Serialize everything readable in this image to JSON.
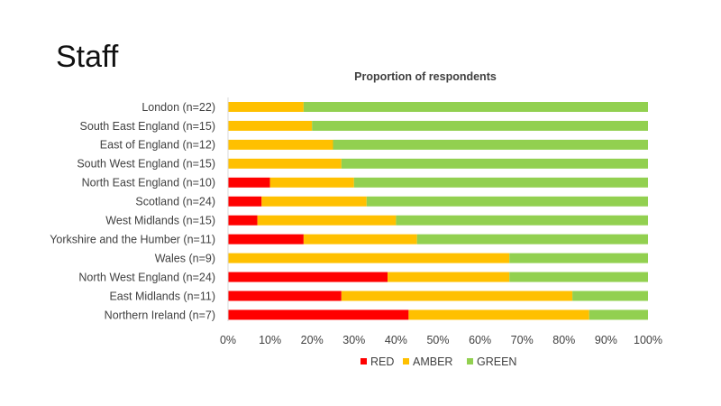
{
  "slide": {
    "title": "Staff"
  },
  "chart_data": {
    "type": "bar",
    "orientation": "horizontal",
    "stacked": "percent",
    "title": "Proportion of respondents",
    "categories": [
      "London (n=22)",
      "South East England (n=15)",
      "East of England (n=12)",
      "South West England (n=15)",
      "North East England (n=10)",
      "Scotland (n=24)",
      "West Midlands (n=15)",
      "Yorkshire and the Humber (n=11)",
      "Wales (n=9)",
      "North West England (n=24)",
      "East Midlands (n=11)",
      "Northern Ireland (n=7)"
    ],
    "series": [
      {
        "name": "RED",
        "color": "#ff0000",
        "values": [
          0,
          0,
          0,
          0,
          10,
          8,
          7,
          18,
          0,
          38,
          27,
          43
        ]
      },
      {
        "name": "AMBER",
        "color": "#ffc000",
        "values": [
          18,
          20,
          25,
          27,
          20,
          25,
          33,
          27,
          67,
          29,
          55,
          43
        ]
      },
      {
        "name": "GREEN",
        "color": "#92d050",
        "values": [
          82,
          80,
          75,
          73,
          70,
          67,
          60,
          55,
          33,
          33,
          18,
          14
        ]
      }
    ],
    "xlim": [
      0,
      100
    ],
    "xticks": [
      "0%",
      "10%",
      "20%",
      "30%",
      "40%",
      "50%",
      "60%",
      "70%",
      "80%",
      "90%",
      "100%"
    ],
    "grid": false,
    "legend_position": "bottom"
  }
}
